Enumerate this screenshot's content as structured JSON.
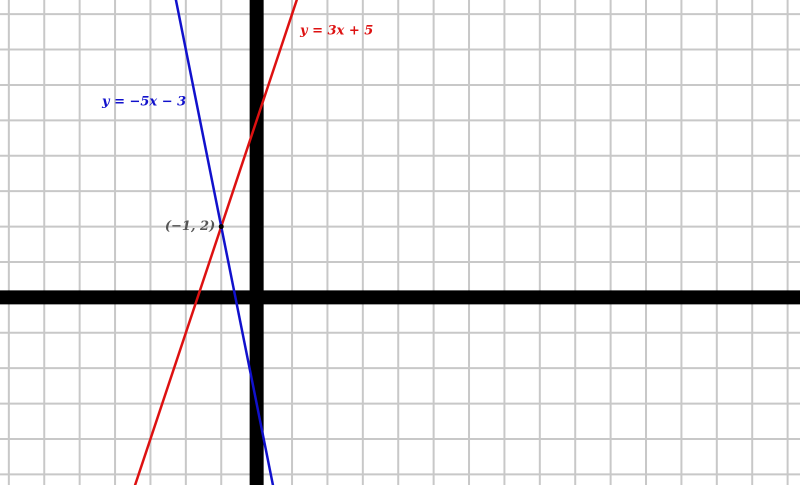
{
  "chart_data": {
    "type": "line",
    "xlim": [
      -7.25,
      15.35
    ],
    "ylim": [
      -5.3,
      8.4
    ],
    "grid": true,
    "series": [
      {
        "name": "y = 3x + 5",
        "color": "#dd1111",
        "x": [
          -3.5,
          1.2
        ],
        "values": [
          -5.5,
          8.6
        ]
      },
      {
        "name": "y = −5x − 3",
        "color": "#1111cc",
        "x": [
          -2.3,
          0.5
        ],
        "values": [
          8.5,
          -5.5
        ]
      }
    ],
    "annotations": [
      {
        "text": "(−1, 2)",
        "x": -1,
        "y": 2
      }
    ]
  }
}
